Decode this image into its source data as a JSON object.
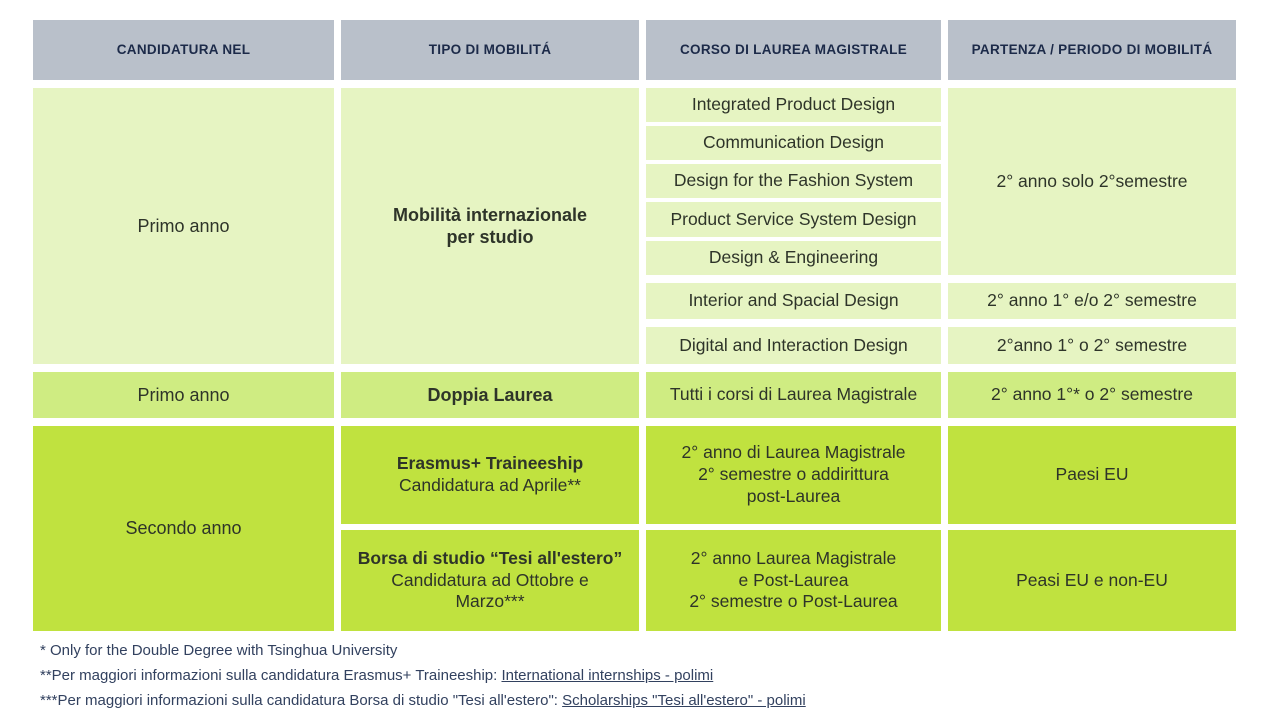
{
  "colors": {
    "header-bg": "#b9c0ca",
    "header-text": "#1c2a49",
    "green-light": "#e6f4c2",
    "green-mid": "#cfec82",
    "green-bright": "#c0e23f",
    "body-text": "#2e3429",
    "note-text": "#32415f",
    "page-bg": "#ffffff"
  },
  "header": {
    "candidatura": "CANDIDATURA NEL",
    "tipo": "TIPO DI MOBILITÁ",
    "corso": "CORSO DI LAUREA MAGISTRALE",
    "partenza": "PARTENZA / PERIODO DI MOBILITÁ"
  },
  "primo_studio": {
    "candidatura": "Primo anno",
    "tipo": "Mobilità internazionale\nper studio",
    "courses": [
      "Integrated Product Design",
      "Communication Design",
      "Design for the Fashion System",
      "Product Service System Design",
      "Design & Engineering",
      "Interior and Spacial Design",
      "Digital and Interaction Design"
    ],
    "periodo_group": "2° anno solo 2°semestre",
    "periodo_interior": "2° anno 1° e/o 2° semestre",
    "periodo_digital": "2°anno 1° o 2° semestre"
  },
  "doppia": {
    "candidatura": "Primo anno",
    "tipo": "Doppia Laurea",
    "corso": "Tutti i corsi di Laurea Magistrale",
    "periodo": "2° anno 1°* o 2° semestre"
  },
  "secondo": {
    "candidatura": "Secondo anno",
    "erasmus": {
      "tipo_title": "Erasmus+ Traineeship",
      "tipo_sub": "Candidatura ad Aprile**",
      "corso": "2° anno di Laurea Magistrale\n2° semestre o addirittura\npost-Laurea",
      "partenza": "Paesi EU"
    },
    "borsa": {
      "tipo_title": "Borsa di studio “Tesi all'estero”",
      "tipo_sub": "Candidatura ad Ottobre e\nMarzo***",
      "corso": "2° anno Laurea Magistrale\ne Post-Laurea\n2° semestre o Post-Laurea",
      "partenza": "Peasi EU e non-EU"
    }
  },
  "footnotes": [
    {
      "text": "* Only for the Double Degree with Tsinghua University",
      "link": ""
    },
    {
      "text": "**Per maggiori informazioni sulla candidatura Erasmus+ Traineeship: ",
      "link": "International internships - polimi"
    },
    {
      "text": "***Per maggiori informazioni sulla candidatura Borsa di studio \"Tesi all'estero\": ",
      "link": "Scholarships \"Tesi all'estero\" - polimi"
    }
  ]
}
